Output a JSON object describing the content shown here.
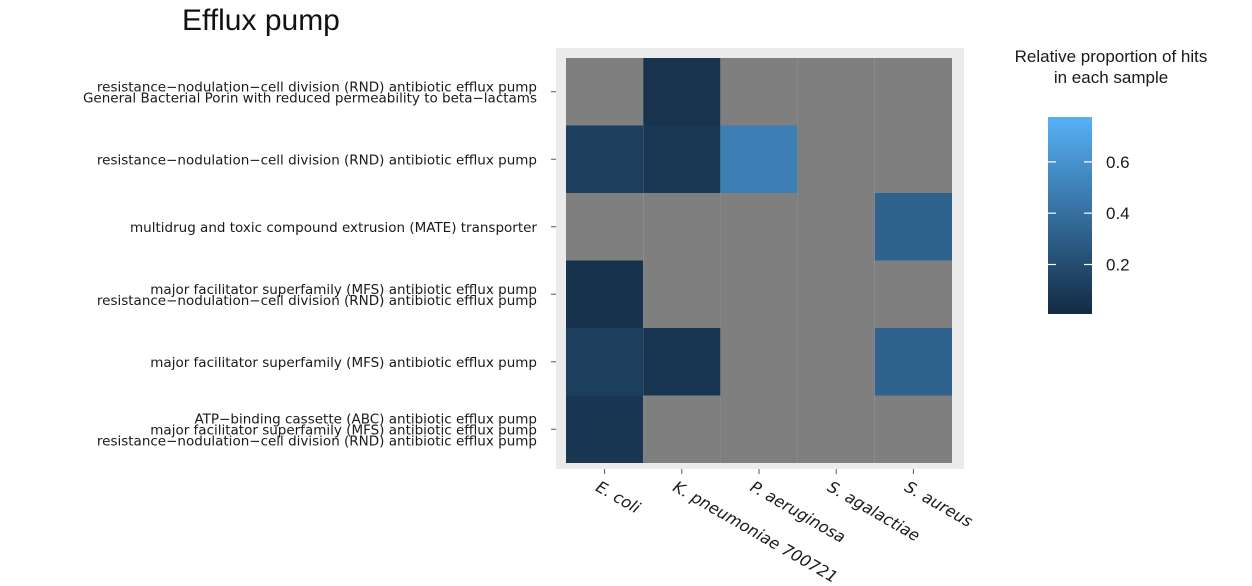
{
  "chart_data": {
    "type": "heatmap",
    "title": "Efflux pump",
    "x_categories": [
      "E. coli",
      "K. pneumoniae 700721",
      "P. aeruginosa",
      "S. agalactiae",
      "S. aureus"
    ],
    "y_categories": [
      [
        "resistance−nodulation−cell division (RND) antibiotic efflux pump",
        "General Bacterial Porin with reduced permeability to beta−lactams"
      ],
      [
        "resistance−nodulation−cell division (RND) antibiotic efflux pump"
      ],
      [
        "multidrug and toxic compound extrusion (MATE) transporter"
      ],
      [
        "major facilitator superfamily (MFS) antibiotic efflux pump",
        "resistance−nodulation−cell division (RND) antibiotic efflux pump"
      ],
      [
        "major facilitator superfamily (MFS) antibiotic efflux pump"
      ],
      [
        "ATP−binding cassette (ABC) antibiotic efflux pump",
        "major facilitator superfamily (MFS) antibiotic efflux pump",
        "resistance−nodulation−cell division (RND) antibiotic efflux pump"
      ]
    ],
    "values": [
      [
        null,
        0.05,
        null,
        null,
        null
      ],
      [
        0.12,
        0.08,
        0.5,
        null,
        null
      ],
      [
        null,
        null,
        null,
        null,
        0.33
      ],
      [
        0.04,
        null,
        null,
        null,
        null
      ],
      [
        0.12,
        0.06,
        null,
        null,
        0.33
      ],
      [
        0.07,
        null,
        null,
        null,
        null
      ]
    ],
    "missing_color": "#7f7f7f",
    "color_scale": {
      "low": "#132b43",
      "high": "#56b1f7",
      "domain": [
        0,
        0.8
      ]
    },
    "legend": {
      "title_lines": [
        "Relative proportion of hits",
        "in each sample"
      ],
      "ticks": [
        0.2,
        0.4,
        0.6
      ],
      "tick_labels": [
        "0.2",
        "0.4",
        "0.6"
      ],
      "position": "right"
    },
    "panel_background": "#ebebeb"
  }
}
